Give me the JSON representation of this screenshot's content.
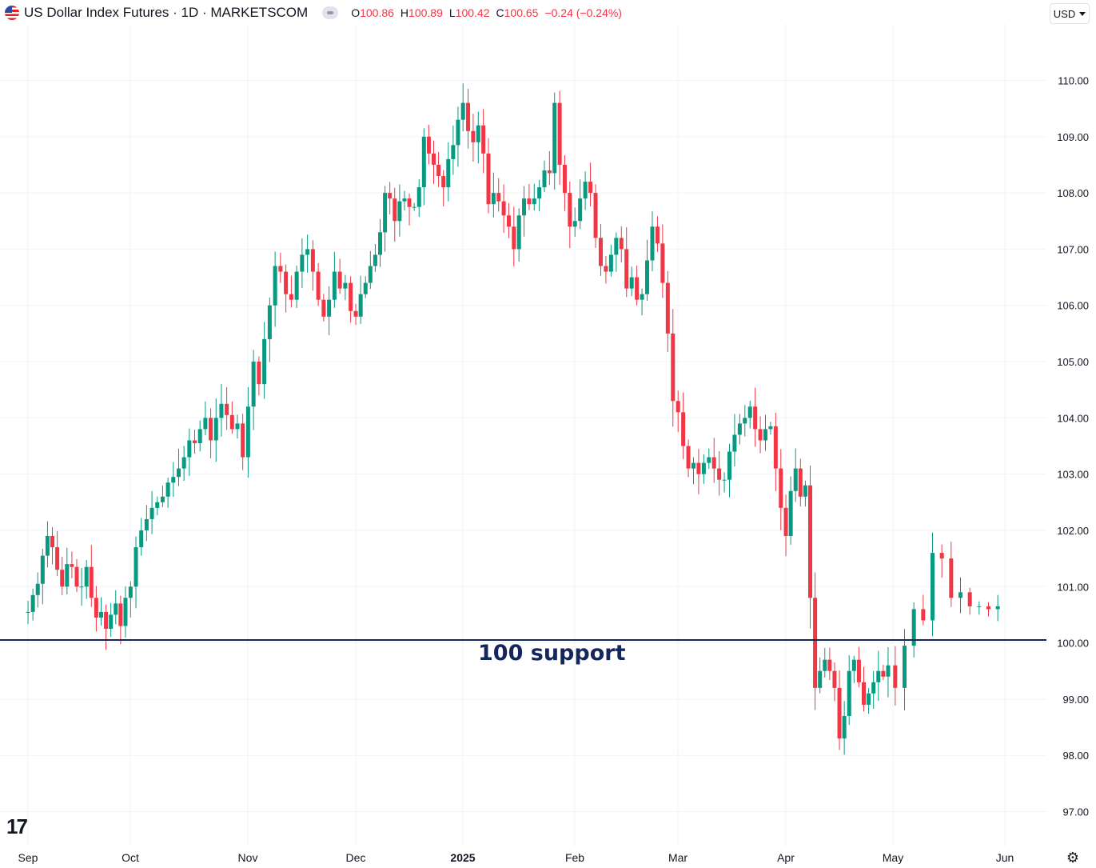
{
  "header": {
    "symbol_title": "US Dollar Index Futures · 1D · MARKETSCOM",
    "ohlc": {
      "o_label": "O",
      "o_value": "100.86",
      "h_label": "H",
      "h_value": "100.89",
      "l_label": "L",
      "l_value": "100.42",
      "c_label": "C",
      "c_value": "100.65",
      "change": "−0.24 (−0.24%)"
    },
    "currency_button": "USD"
  },
  "logo_text": "17",
  "colors": {
    "up": "#089981",
    "down": "#f23645",
    "support_line": "#14265a",
    "grid": "#f0f3fa"
  },
  "chart_data": {
    "type": "candlestick",
    "x_labels": [
      "Sep",
      "Oct",
      "Nov",
      "Dec",
      "2025",
      "Feb",
      "Mar",
      "Apr",
      "May",
      "Jun"
    ],
    "y_ticks": [
      "110.00",
      "109.00",
      "108.00",
      "107.00",
      "106.00",
      "105.00",
      "104.00",
      "103.00",
      "102.00",
      "101.00",
      "100.00",
      "99.00",
      "98.00",
      "97.00"
    ],
    "ylim": [
      96.6,
      110.9
    ],
    "grid": true,
    "annotation": {
      "text": "100 support",
      "level": 100.05
    },
    "segments": [
      {
        "start": "Sep",
        "days": 21,
        "values": [
          100.55,
          100.85,
          101.05,
          101.55,
          101.9,
          101.7,
          101.3,
          101.0,
          101.4,
          101.35,
          101.0,
          101.0,
          101.35,
          100.8,
          100.45,
          100.55,
          100.25,
          100.5,
          100.7,
          100.3,
          100.8
        ]
      },
      {
        "start": "Oct",
        "days": 22,
        "values": [
          101.0,
          101.7,
          102.0,
          102.2,
          102.4,
          102.5,
          102.6,
          102.85,
          102.95,
          103.1,
          103.3,
          103.6,
          103.55,
          103.8,
          104.0,
          103.6,
          104.0,
          104.25,
          104.05,
          103.8,
          103.9,
          103.3
        ]
      },
      {
        "start": "Nov",
        "days": 20,
        "values": [
          104.2,
          105.0,
          104.6,
          105.4,
          106.0,
          106.7,
          106.6,
          106.2,
          106.1,
          106.6,
          106.9,
          107.0,
          106.6,
          106.1,
          105.8,
          106.1,
          106.6,
          106.3,
          106.4,
          105.9
        ]
      },
      {
        "start": "Dec",
        "days": 22,
        "values": [
          105.8,
          106.2,
          106.4,
          106.7,
          106.9,
          107.3,
          108.0,
          107.9,
          107.5,
          107.85,
          107.9,
          107.75,
          107.75,
          108.1,
          109.0,
          108.7,
          108.5,
          108.3,
          108.1,
          108.6,
          108.85,
          109.3
        ]
      },
      {
        "start": "2025",
        "days": 22,
        "values": [
          109.6,
          109.1,
          108.9,
          109.2,
          108.7,
          107.8,
          108.0,
          107.85,
          107.6,
          107.4,
          107.0,
          107.6,
          107.9,
          107.8,
          107.9,
          108.1,
          108.4,
          108.35,
          109.6,
          108.5,
          108.0,
          107.4
        ]
      },
      {
        "start": "Feb",
        "days": 20,
        "values": [
          107.5,
          107.9,
          108.2,
          108.0,
          107.2,
          106.7,
          106.6,
          106.9,
          107.2,
          107.0,
          106.3,
          106.5,
          106.1,
          106.2,
          106.8,
          107.4,
          107.1,
          106.4,
          105.5,
          104.3
        ]
      },
      {
        "start": "Mar",
        "days": 21,
        "values": [
          104.1,
          103.5,
          103.1,
          103.2,
          103.0,
          103.2,
          103.3,
          103.1,
          102.9,
          102.9,
          103.4,
          103.7,
          103.9,
          104.0,
          104.2,
          103.8,
          103.6,
          103.8,
          103.85,
          103.1,
          102.4
        ]
      },
      {
        "start": "Apr",
        "days": 22,
        "values": [
          101.9,
          102.7,
          103.1,
          102.6,
          102.8,
          100.8,
          99.2,
          99.5,
          99.7,
          99.5,
          99.2,
          98.3,
          98.7,
          99.5,
          99.7,
          99.3,
          98.9,
          99.1,
          99.3,
          99.5,
          99.4,
          99.6
        ]
      },
      {
        "start": "May",
        "days": 12,
        "values": [
          99.2,
          99.95,
          100.6,
          100.4,
          101.6,
          101.5,
          100.8,
          100.9,
          100.65,
          100.65,
          100.6,
          100.65
        ]
      }
    ]
  }
}
